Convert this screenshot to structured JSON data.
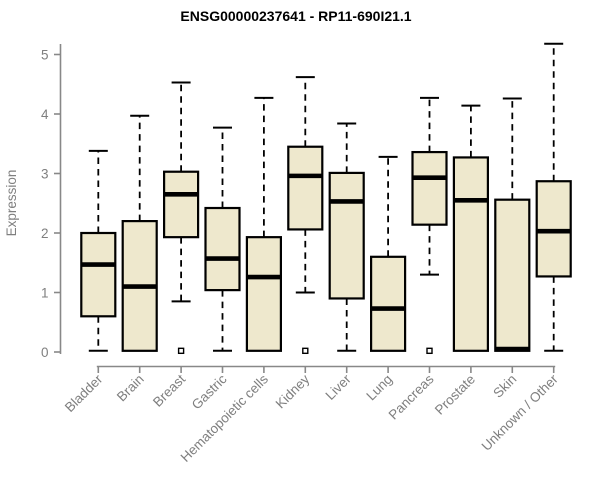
{
  "chart_data": {
    "type": "boxplot",
    "title": "ENSG00000237641 - RP11-690I21.1",
    "ylabel": "Expression",
    "xlabel": "",
    "ylim": [
      0,
      5.2
    ],
    "yticks": [
      0,
      1,
      2,
      3,
      4,
      5
    ],
    "grid": false,
    "legend": "none",
    "colors": {
      "box_fill": "#EEE8CD",
      "box_border": "#000000",
      "median": "#000000",
      "whisker": "#000000",
      "axis": "#888888",
      "tick_label": "#7f7f7f",
      "title": "#000000",
      "background": "#ffffff"
    },
    "categories": [
      "Bladder",
      "Brain",
      "Breast",
      "Gastric",
      "Hematopoietic cells",
      "Kidney",
      "Liver",
      "Lung",
      "Pancreas",
      "Prostate",
      "Skin",
      "Unknown / Other"
    ],
    "boxes": [
      {
        "category": "Bladder",
        "whisker_low": 0.02,
        "q1": 0.6,
        "median": 1.47,
        "q3": 2.0,
        "whisker_high": 3.38,
        "outliers": []
      },
      {
        "category": "Brain",
        "whisker_low": 0.02,
        "q1": 0.02,
        "median": 1.1,
        "q3": 2.2,
        "whisker_high": 3.97,
        "outliers": []
      },
      {
        "category": "Breast",
        "whisker_low": 0.85,
        "q1": 1.93,
        "median": 2.65,
        "q3": 3.03,
        "whisker_high": 4.53,
        "outliers": [
          0.02
        ]
      },
      {
        "category": "Gastric",
        "whisker_low": 0.02,
        "q1": 1.04,
        "median": 1.57,
        "q3": 2.42,
        "whisker_high": 3.77,
        "outliers": []
      },
      {
        "category": "Hematopoietic cells",
        "whisker_low": 0.02,
        "q1": 0.02,
        "median": 1.26,
        "q3": 1.93,
        "whisker_high": 4.27,
        "outliers": []
      },
      {
        "category": "Kidney",
        "whisker_low": 1.0,
        "q1": 2.06,
        "median": 2.96,
        "q3": 3.45,
        "whisker_high": 4.62,
        "outliers": [
          0.02
        ]
      },
      {
        "category": "Liver",
        "whisker_low": 0.02,
        "q1": 0.9,
        "median": 2.53,
        "q3": 3.01,
        "whisker_high": 3.84,
        "outliers": []
      },
      {
        "category": "Lung",
        "whisker_low": 0.02,
        "q1": 0.02,
        "median": 0.73,
        "q3": 1.6,
        "whisker_high": 3.28,
        "outliers": []
      },
      {
        "category": "Pancreas",
        "whisker_low": 1.3,
        "q1": 2.14,
        "median": 2.93,
        "q3": 3.36,
        "whisker_high": 4.27,
        "outliers": [
          0.02
        ]
      },
      {
        "category": "Prostate",
        "whisker_low": 0.02,
        "q1": 0.02,
        "median": 2.55,
        "q3": 3.27,
        "whisker_high": 4.14,
        "outliers": []
      },
      {
        "category": "Skin",
        "whisker_low": 0.02,
        "q1": 0.02,
        "median": 0.05,
        "q3": 2.56,
        "whisker_high": 4.26,
        "outliers": []
      },
      {
        "category": "Unknown / Other",
        "whisker_low": 0.02,
        "q1": 1.27,
        "median": 2.03,
        "q3": 2.87,
        "whisker_high": 5.18,
        "outliers": []
      }
    ]
  }
}
